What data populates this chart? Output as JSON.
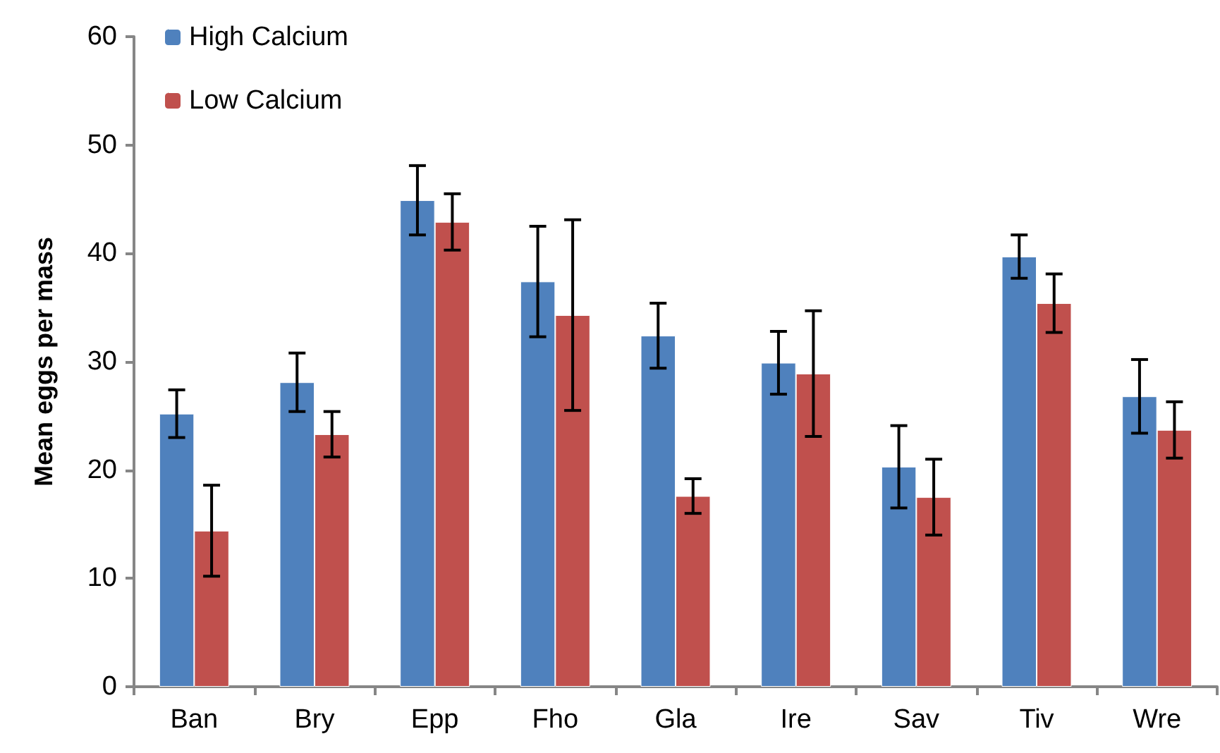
{
  "chart_data": {
    "type": "bar",
    "ylabel": "Mean eggs per mass",
    "categories": [
      "Ban",
      "Bry",
      "Epp",
      "Fho",
      "Gla",
      "Ire",
      "Sav",
      "Tiv",
      "Wre"
    ],
    "series": [
      {
        "name": "High Calcium",
        "color": "#4f81bd",
        "values": [
          25.2,
          28.1,
          44.9,
          37.4,
          32.4,
          29.9,
          20.3,
          39.7,
          26.8
        ],
        "errors": [
          2.2,
          2.7,
          3.2,
          5.1,
          3.0,
          2.9,
          3.8,
          2.0,
          3.4
        ]
      },
      {
        "name": "Low Calcium",
        "color": "#c0504d",
        "values": [
          14.4,
          23.3,
          42.9,
          34.3,
          17.6,
          28.9,
          17.5,
          35.4,
          23.7
        ],
        "errors": [
          4.2,
          2.1,
          2.6,
          8.8,
          1.6,
          5.8,
          3.5,
          2.7,
          2.6
        ]
      }
    ],
    "ylim": [
      0,
      60
    ],
    "yticks": [
      0,
      10,
      20,
      30,
      40,
      50,
      60
    ],
    "grid": false,
    "legend": "top left"
  }
}
